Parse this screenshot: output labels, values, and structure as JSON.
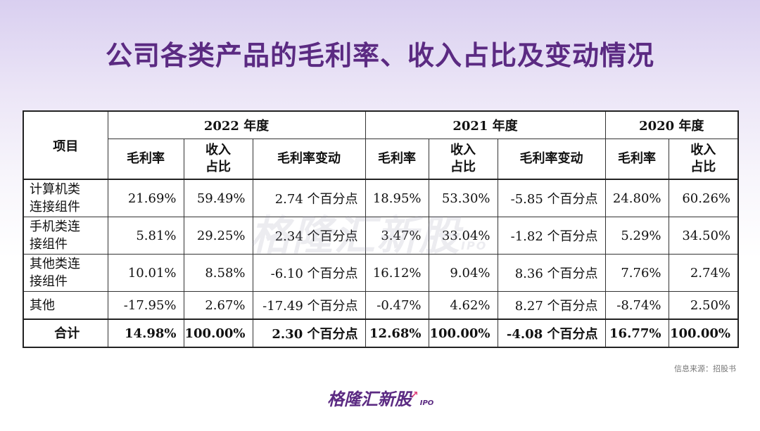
{
  "title": "公司各类产品的毛利率、收入占比及变动情况",
  "table": {
    "item_header": "项目",
    "years": [
      "2022 年度",
      "2021 年度",
      "2020 年度"
    ],
    "sub_headers": {
      "gross_margin": "毛利率",
      "revenue_share_line1": "收入",
      "revenue_share_line2": "占比",
      "gross_margin_change": "毛利率变动"
    },
    "rows": [
      {
        "item_line1": "计算机类",
        "item_line2": "连接组件",
        "c": [
          "21.69%",
          "59.49%",
          "2.74 个百分点",
          "18.95%",
          "53.30%",
          "-5.85 个百分点",
          "24.80%",
          "60.26%"
        ]
      },
      {
        "item_line1": "手机类连",
        "item_line2": "接组件",
        "c": [
          "5.81%",
          "29.25%",
          "2.34 个百分点",
          "3.47%",
          "33.04%",
          "-1.82 个百分点",
          "5.29%",
          "34.50%"
        ]
      },
      {
        "item_line1": "其他类连",
        "item_line2": "接组件",
        "c": [
          "10.01%",
          "8.58%",
          "-6.10 个百分点",
          "16.12%",
          "9.04%",
          "8.36 个百分点",
          "7.76%",
          "2.74%"
        ]
      },
      {
        "item_line1": "其他",
        "item_line2": "",
        "c": [
          "-17.95%",
          "2.67%",
          "-17.49 个百分点",
          "-0.47%",
          "4.62%",
          "8.27 个百分点",
          "-8.74%",
          "2.50%"
        ]
      },
      {
        "item_line1": "合计",
        "item_line2": "",
        "c": [
          "14.98%",
          "100.00%",
          "2.30 个百分点",
          "12.68%",
          "100.00%",
          "-4.08 个百分点",
          "16.77%",
          "100.00%"
        ]
      }
    ]
  },
  "watermark": {
    "text": "格隆汇新股",
    "suffix": "IPO"
  },
  "source": "信息来源：招股书",
  "logo": {
    "text": "格隆汇新股",
    "suffix": "IPO"
  }
}
